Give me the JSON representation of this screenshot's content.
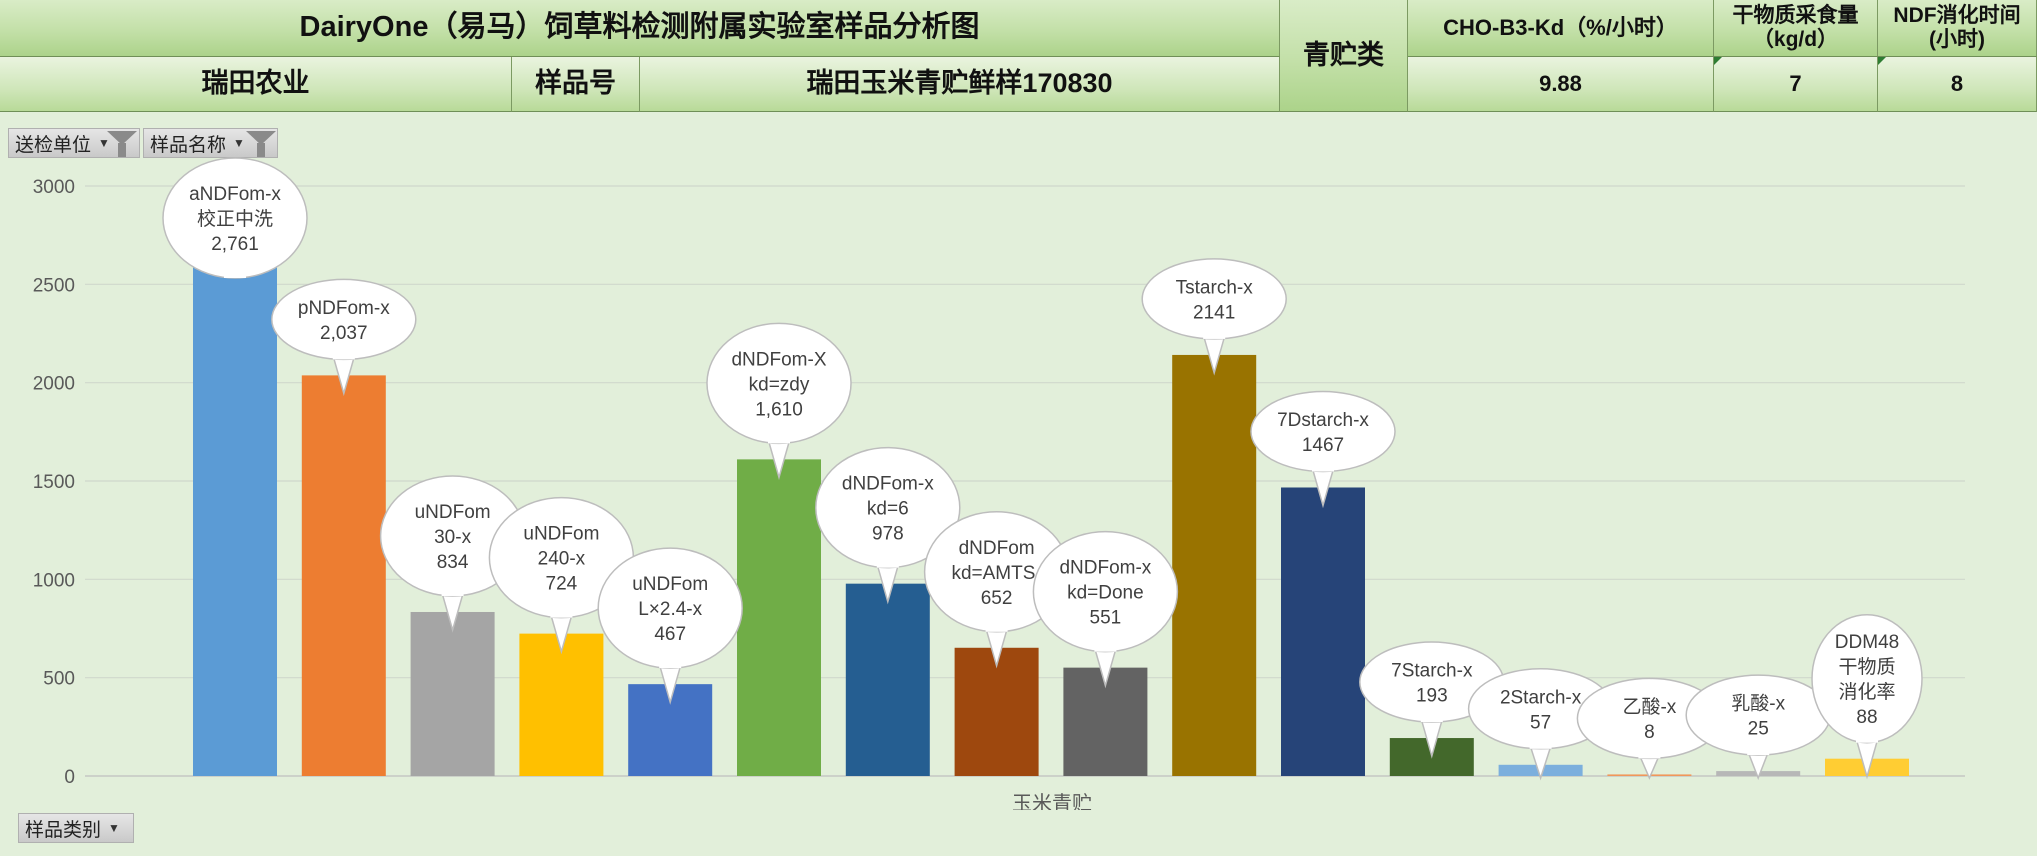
{
  "header": {
    "title": "DairyOne（易马）饲草料检测附属实验室样品分析图",
    "company": "瑞田农业",
    "sample_no_label": "样品号",
    "sample_name": "瑞田玉米青贮鲜样170830",
    "category": "青贮类",
    "kd_label": "CHO-B3-Kd（%/小时）",
    "kd_value": "9.88",
    "intake_label": "干物质采食量（kg/d）",
    "intake_value": "7",
    "ndf_time_label": "NDF消化时间(小时)",
    "ndf_time_value": "8"
  },
  "slicers": {
    "unit": "送检单位",
    "name": "样品名称",
    "category": "样品类别"
  },
  "chart_data": {
    "type": "bar",
    "xlabel": "玉米青贮",
    "ylabel": "",
    "ylim": [
      0,
      3000
    ],
    "yticks": [
      0,
      500,
      1000,
      1500,
      2000,
      2500,
      3000
    ],
    "grid": true,
    "series": [
      {
        "label_lines": [
          "aNDFom-x",
          "校正中洗",
          "2,761"
        ],
        "value": 2761,
        "color": "#5b9bd5"
      },
      {
        "label_lines": [
          "pNDFom-x",
          "2,037"
        ],
        "value": 2037,
        "color": "#ed7d31"
      },
      {
        "label_lines": [
          "uNDFom",
          "30-x",
          "834"
        ],
        "value": 834,
        "color": "#a5a5a5"
      },
      {
        "label_lines": [
          "uNDFom",
          "240-x",
          "724"
        ],
        "value": 724,
        "color": "#ffc000"
      },
      {
        "label_lines": [
          "uNDFom",
          "L×2.4-x",
          "467"
        ],
        "value": 467,
        "color": "#4472c4"
      },
      {
        "label_lines": [
          "dNDFom-X",
          "kd=zdy",
          "1,610"
        ],
        "value": 1610,
        "color": "#70ad47"
      },
      {
        "label_lines": [
          "dNDFom-x",
          "kd=6",
          "978"
        ],
        "value": 978,
        "color": "#255e91"
      },
      {
        "label_lines": [
          "dNDFom",
          "kd=AMTS-",
          "652"
        ],
        "value": 652,
        "color": "#9e480e"
      },
      {
        "label_lines": [
          "dNDFom-x",
          "kd=Done",
          "551"
        ],
        "value": 551,
        "color": "#636363"
      },
      {
        "label_lines": [
          "Tstarch-x",
          "2141"
        ],
        "value": 2141,
        "color": "#997300"
      },
      {
        "label_lines": [
          "7Dstarch-x",
          "1467"
        ],
        "value": 1467,
        "color": "#264478"
      },
      {
        "label_lines": [
          "7Starch-x",
          "193"
        ],
        "value": 193,
        "color": "#43682b"
      },
      {
        "label_lines": [
          "2Starch-x",
          "57"
        ],
        "value": 57,
        "color": "#7cafdd"
      },
      {
        "label_lines": [
          "乙酸-x",
          "8"
        ],
        "value": 8,
        "color": "#f1975a"
      },
      {
        "label_lines": [
          "乳酸-x",
          "25"
        ],
        "value": 25,
        "color": "#b7b7b7"
      },
      {
        "label_lines": [
          "DDM48",
          "干物质",
          "消化率",
          "88"
        ],
        "value": 88,
        "color": "#ffcd33"
      }
    ]
  }
}
